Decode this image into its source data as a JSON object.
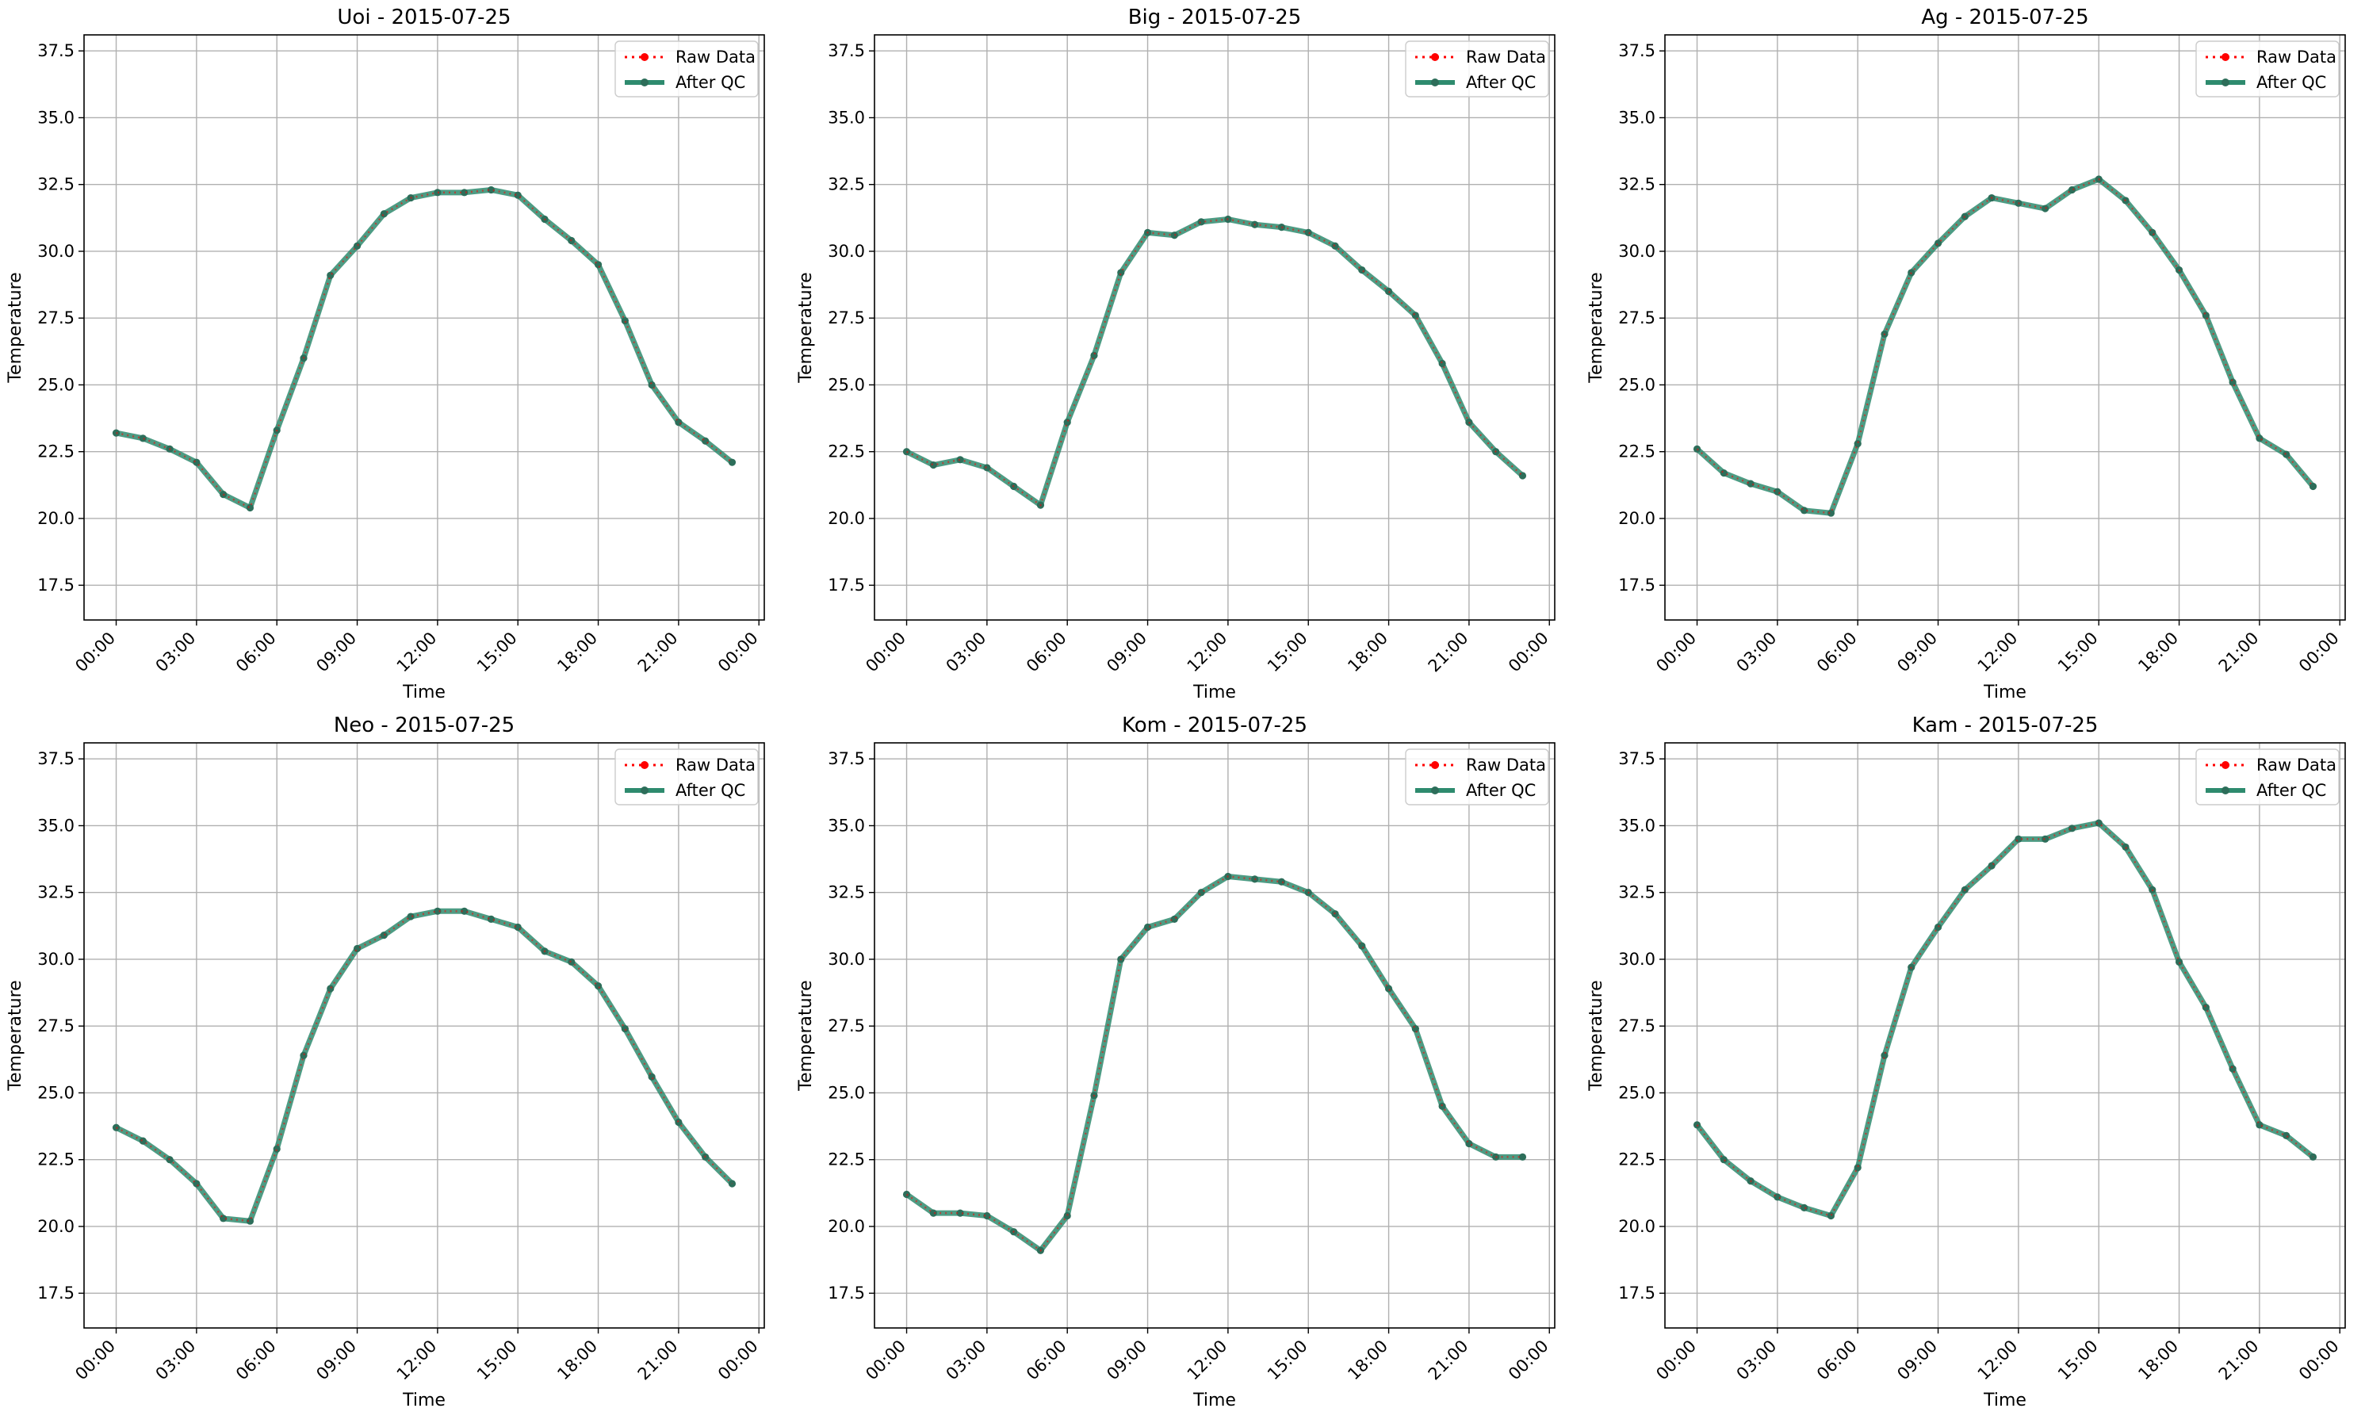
{
  "figure": {
    "background": "#ffffff",
    "colors": {
      "raw": "#ff0000",
      "qc_line": "#2e8b6e",
      "qc_marker": "#2d6e5a",
      "grid": "#b0b0b0",
      "axis": "#000000"
    }
  },
  "chart_data": [
    {
      "type": "line",
      "title": "Uoi - 2015-07-25",
      "xlabel": "Time",
      "ylabel": "Temperature",
      "xticks": [
        "00:00",
        "03:00",
        "06:00",
        "09:00",
        "12:00",
        "15:00",
        "18:00",
        "21:00",
        "00:00"
      ],
      "yticks": [
        "17.5",
        "20.0",
        "22.5",
        "25.0",
        "27.5",
        "30.0",
        "32.5",
        "35.0",
        "37.5"
      ],
      "xlim": [
        -1.2,
        24.2
      ],
      "ylim": [
        16.2,
        38.1
      ],
      "x": [
        0,
        1,
        2,
        3,
        4,
        5,
        6,
        7,
        8,
        9,
        10,
        11,
        12,
        13,
        14,
        15,
        16,
        17,
        18,
        19,
        20,
        21,
        22,
        23
      ],
      "series": [
        {
          "name": "Raw Data",
          "values": [
            23.2,
            23.0,
            22.6,
            22.1,
            20.9,
            20.4,
            23.3,
            26.0,
            29.1,
            30.2,
            31.4,
            32.0,
            32.2,
            32.2,
            32.3,
            32.1,
            31.2,
            30.4,
            29.5,
            27.4,
            25.0,
            23.6,
            22.9,
            22.1
          ]
        },
        {
          "name": "After QC",
          "values": [
            23.2,
            23.0,
            22.6,
            22.1,
            20.9,
            20.4,
            23.3,
            26.0,
            29.1,
            30.2,
            31.4,
            32.0,
            32.2,
            32.2,
            32.3,
            32.1,
            31.2,
            30.4,
            29.5,
            27.4,
            25.0,
            23.6,
            22.9,
            22.1
          ]
        }
      ],
      "grid": true,
      "legend": "top-right"
    },
    {
      "type": "line",
      "title": "Big - 2015-07-25",
      "xlabel": "Time",
      "ylabel": "Temperature",
      "xticks": [
        "00:00",
        "03:00",
        "06:00",
        "09:00",
        "12:00",
        "15:00",
        "18:00",
        "21:00",
        "00:00"
      ],
      "yticks": [
        "17.5",
        "20.0",
        "22.5",
        "25.0",
        "27.5",
        "30.0",
        "32.5",
        "35.0",
        "37.5"
      ],
      "xlim": [
        -1.2,
        24.2
      ],
      "ylim": [
        16.2,
        38.1
      ],
      "x": [
        0,
        1,
        2,
        3,
        4,
        5,
        6,
        7,
        8,
        9,
        10,
        11,
        12,
        13,
        14,
        15,
        16,
        17,
        18,
        19,
        20,
        21,
        22,
        23
      ],
      "series": [
        {
          "name": "Raw Data",
          "values": [
            22.5,
            22.0,
            22.2,
            21.9,
            21.2,
            20.5,
            23.6,
            26.1,
            29.2,
            30.7,
            30.6,
            31.1,
            31.2,
            31.0,
            30.9,
            30.7,
            30.2,
            29.3,
            28.5,
            27.6,
            25.8,
            23.6,
            22.5,
            21.6
          ]
        },
        {
          "name": "After QC",
          "values": [
            22.5,
            22.0,
            22.2,
            21.9,
            21.2,
            20.5,
            23.6,
            26.1,
            29.2,
            30.7,
            30.6,
            31.1,
            31.2,
            31.0,
            30.9,
            30.7,
            30.2,
            29.3,
            28.5,
            27.6,
            25.8,
            23.6,
            22.5,
            21.6
          ]
        }
      ],
      "grid": true,
      "legend": "top-right"
    },
    {
      "type": "line",
      "title": "Ag - 2015-07-25",
      "xlabel": "Time",
      "ylabel": "Temperature",
      "xticks": [
        "00:00",
        "03:00",
        "06:00",
        "09:00",
        "12:00",
        "15:00",
        "18:00",
        "21:00",
        "00:00"
      ],
      "yticks": [
        "17.5",
        "20.0",
        "22.5",
        "25.0",
        "27.5",
        "30.0",
        "32.5",
        "35.0",
        "37.5"
      ],
      "xlim": [
        -1.2,
        24.2
      ],
      "ylim": [
        16.2,
        38.1
      ],
      "x": [
        0,
        1,
        2,
        3,
        4,
        5,
        6,
        7,
        8,
        9,
        10,
        11,
        12,
        13,
        14,
        15,
        16,
        17,
        18,
        19,
        20,
        21,
        22,
        23
      ],
      "series": [
        {
          "name": "Raw Data",
          "values": [
            22.6,
            21.7,
            21.3,
            21.0,
            20.3,
            20.2,
            22.8,
            26.9,
            29.2,
            30.3,
            31.3,
            32.0,
            31.8,
            31.6,
            32.3,
            32.7,
            31.9,
            30.7,
            29.3,
            27.6,
            25.1,
            23.0,
            22.4,
            21.2
          ]
        },
        {
          "name": "After QC",
          "values": [
            22.6,
            21.7,
            21.3,
            21.0,
            20.3,
            20.2,
            22.8,
            26.9,
            29.2,
            30.3,
            31.3,
            32.0,
            31.8,
            31.6,
            32.3,
            32.7,
            31.9,
            30.7,
            29.3,
            27.6,
            25.1,
            23.0,
            22.4,
            21.2
          ]
        }
      ],
      "grid": true,
      "legend": "top-right"
    },
    {
      "type": "line",
      "title": "Neo - 2015-07-25",
      "xlabel": "Time",
      "ylabel": "Temperature",
      "xticks": [
        "00:00",
        "03:00",
        "06:00",
        "09:00",
        "12:00",
        "15:00",
        "18:00",
        "21:00",
        "00:00"
      ],
      "yticks": [
        "17.5",
        "20.0",
        "22.5",
        "25.0",
        "27.5",
        "30.0",
        "32.5",
        "35.0",
        "37.5"
      ],
      "xlim": [
        -1.2,
        24.2
      ],
      "ylim": [
        16.2,
        38.1
      ],
      "x": [
        0,
        1,
        2,
        3,
        4,
        5,
        6,
        7,
        8,
        9,
        10,
        11,
        12,
        13,
        14,
        15,
        16,
        17,
        18,
        19,
        20,
        21,
        22,
        23
      ],
      "series": [
        {
          "name": "Raw Data",
          "values": [
            23.7,
            23.2,
            22.5,
            21.6,
            20.3,
            20.2,
            22.9,
            26.4,
            28.9,
            30.4,
            30.9,
            31.6,
            31.8,
            31.8,
            31.5,
            31.2,
            30.3,
            29.9,
            29.0,
            27.4,
            25.6,
            23.9,
            22.6,
            21.6
          ]
        },
        {
          "name": "After QC",
          "values": [
            23.7,
            23.2,
            22.5,
            21.6,
            20.3,
            20.2,
            22.9,
            26.4,
            28.9,
            30.4,
            30.9,
            31.6,
            31.8,
            31.8,
            31.5,
            31.2,
            30.3,
            29.9,
            29.0,
            27.4,
            25.6,
            23.9,
            22.6,
            21.6
          ]
        }
      ],
      "grid": true,
      "legend": "top-right"
    },
    {
      "type": "line",
      "title": "Kom - 2015-07-25",
      "xlabel": "Time",
      "ylabel": "Temperature",
      "xticks": [
        "00:00",
        "03:00",
        "06:00",
        "09:00",
        "12:00",
        "15:00",
        "18:00",
        "21:00",
        "00:00"
      ],
      "yticks": [
        "17.5",
        "20.0",
        "22.5",
        "25.0",
        "27.5",
        "30.0",
        "32.5",
        "35.0",
        "37.5"
      ],
      "xlim": [
        -1.2,
        24.2
      ],
      "ylim": [
        16.2,
        38.1
      ],
      "x": [
        0,
        1,
        2,
        3,
        4,
        5,
        6,
        7,
        8,
        9,
        10,
        11,
        12,
        13,
        14,
        15,
        16,
        17,
        18,
        19,
        20,
        21,
        22,
        23
      ],
      "series": [
        {
          "name": "Raw Data",
          "values": [
            21.2,
            20.5,
            20.5,
            20.4,
            19.8,
            19.1,
            20.4,
            24.9,
            30.0,
            31.2,
            31.5,
            32.5,
            33.1,
            33.0,
            32.9,
            32.5,
            31.7,
            30.5,
            28.9,
            27.4,
            24.5,
            23.1,
            22.6,
            22.6
          ]
        },
        {
          "name": "After QC",
          "values": [
            21.2,
            20.5,
            20.5,
            20.4,
            19.8,
            19.1,
            20.4,
            24.9,
            30.0,
            31.2,
            31.5,
            32.5,
            33.1,
            33.0,
            32.9,
            32.5,
            31.7,
            30.5,
            28.9,
            27.4,
            24.5,
            23.1,
            22.6,
            22.6
          ]
        }
      ],
      "grid": true,
      "legend": "top-right"
    },
    {
      "type": "line",
      "title": "Kam - 2015-07-25",
      "xlabel": "Time",
      "ylabel": "Temperature",
      "xticks": [
        "00:00",
        "03:00",
        "06:00",
        "09:00",
        "12:00",
        "15:00",
        "18:00",
        "21:00",
        "00:00"
      ],
      "yticks": [
        "17.5",
        "20.0",
        "22.5",
        "25.0",
        "27.5",
        "30.0",
        "32.5",
        "35.0",
        "37.5"
      ],
      "xlim": [
        -1.2,
        24.2
      ],
      "ylim": [
        16.2,
        38.1
      ],
      "x": [
        0,
        1,
        2,
        3,
        4,
        5,
        6,
        7,
        8,
        9,
        10,
        11,
        12,
        13,
        14,
        15,
        16,
        17,
        18,
        19,
        20,
        21,
        22,
        23
      ],
      "series": [
        {
          "name": "Raw Data",
          "values": [
            23.8,
            22.5,
            21.7,
            21.1,
            20.7,
            20.4,
            22.2,
            26.4,
            29.7,
            31.2,
            32.6,
            33.5,
            34.5,
            34.5,
            34.9,
            35.1,
            34.2,
            32.6,
            29.9,
            28.2,
            25.9,
            23.8,
            23.4,
            22.6
          ]
        },
        {
          "name": "After QC",
          "values": [
            23.8,
            22.5,
            21.7,
            21.1,
            20.7,
            20.4,
            22.2,
            26.4,
            29.7,
            31.2,
            32.6,
            33.5,
            34.5,
            34.5,
            34.9,
            35.1,
            34.2,
            32.6,
            29.9,
            28.2,
            25.9,
            23.8,
            23.4,
            22.6
          ]
        }
      ],
      "grid": true,
      "legend": "top-right"
    }
  ]
}
